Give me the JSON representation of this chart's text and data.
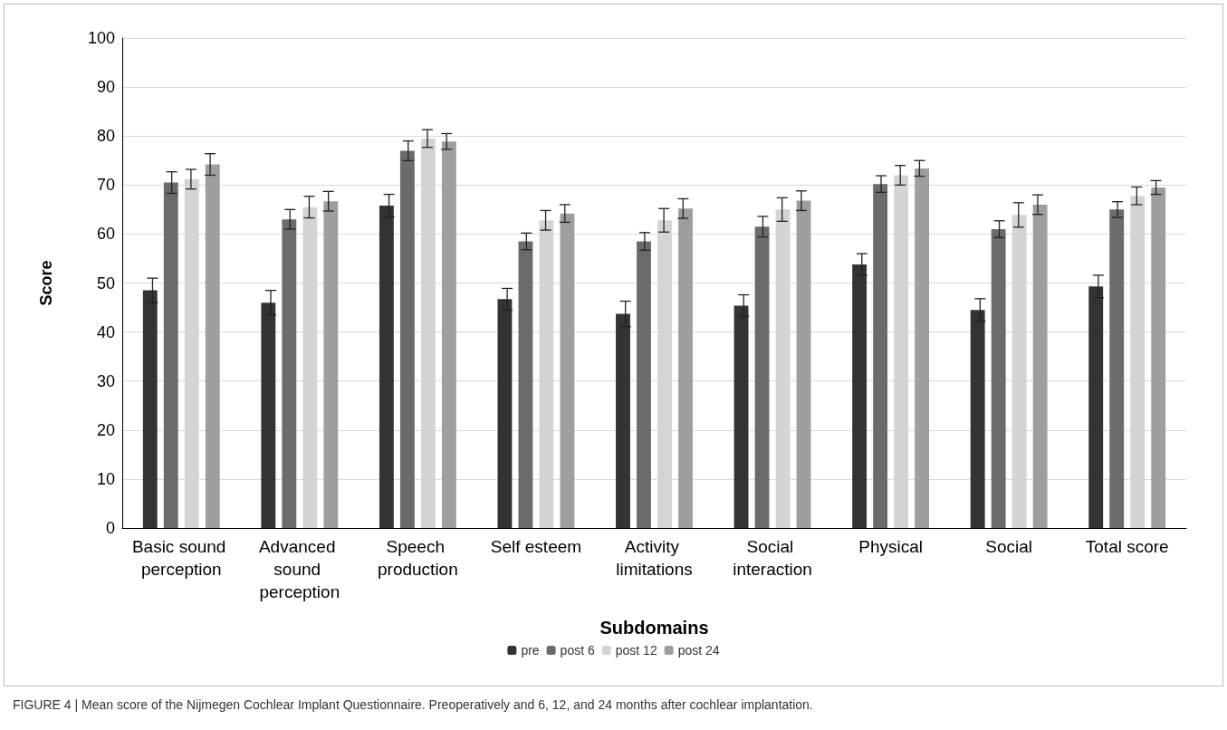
{
  "chart_data": {
    "type": "bar",
    "xlabel": "Subdomains",
    "ylabel": "Score",
    "categories": [
      "Basic sound perception",
      "Advanced sound perception",
      "Speech production",
      "Self esteem",
      "Activity limitations",
      "Social interaction",
      "Physical",
      "Social",
      "Total score"
    ],
    "series": [
      {
        "name": "pre",
        "color": "#333333",
        "values": [
          48.5,
          46,
          65.8,
          46.7,
          43.7,
          45.4,
          53.8,
          44.5,
          49.3
        ],
        "errors": [
          2.5,
          2.5,
          2.3,
          2.2,
          2.6,
          2.2,
          2.2,
          2.3,
          2.3
        ]
      },
      {
        "name": "post 6",
        "color": "#6b6b6b",
        "values": [
          70.5,
          63,
          77,
          58.5,
          58.5,
          61.5,
          70.2,
          61,
          65
        ],
        "errors": [
          2.2,
          2,
          2,
          1.7,
          1.8,
          2.1,
          1.7,
          1.7,
          1.6
        ]
      },
      {
        "name": "post 12",
        "color": "#d4d4d4",
        "values": [
          71.2,
          65.5,
          79.5,
          62.8,
          62.8,
          65,
          72,
          63.9,
          67.8
        ],
        "errors": [
          2,
          2.2,
          1.8,
          2,
          2.4,
          2.4,
          2,
          2.5,
          1.8
        ]
      },
      {
        "name": "post 24",
        "color": "#9e9e9e",
        "values": [
          74.2,
          66.7,
          78.9,
          64.2,
          65.2,
          66.8,
          73.4,
          66,
          69.5
        ],
        "errors": [
          2.2,
          2,
          1.6,
          1.8,
          2,
          2,
          1.6,
          2,
          1.4
        ]
      }
    ],
    "ylim": [
      0,
      100
    ],
    "yticks": [
      0,
      10,
      20,
      30,
      40,
      50,
      60,
      70,
      80,
      90,
      100
    ],
    "grid": "y",
    "legend": "bottom",
    "annotations": [
      "FIGURE 4 | Mean score of the Nijmegen Cochlear Implant Questionnaire. Preoperatively and 6, 12, and 24 months after cochlear implantation."
    ]
  }
}
